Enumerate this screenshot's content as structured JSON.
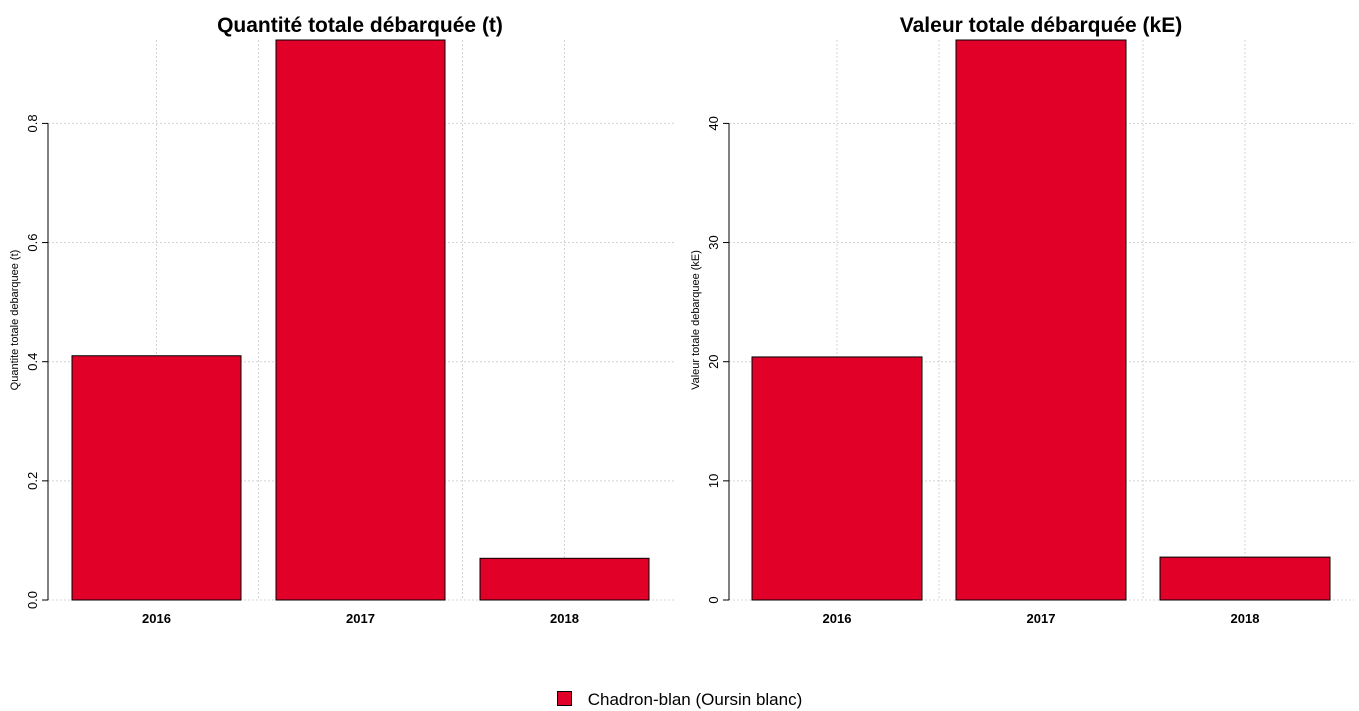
{
  "legend": {
    "label": "Chadron-blan (Oursin blanc)",
    "color": "#e00028"
  },
  "chart_data": [
    {
      "type": "bar",
      "title": "Quantité totale débarquée (t)",
      "xlabel": "",
      "ylabel": "Quantite totale debarquee (t)",
      "categories": [
        "2016",
        "2017",
        "2018"
      ],
      "series": [
        {
          "name": "Chadron-blan (Oursin blanc)",
          "values": [
            0.41,
            0.94,
            0.07
          ]
        }
      ],
      "ylim": [
        0,
        0.94
      ],
      "yticks": [
        0.0,
        0.2,
        0.4,
        0.6,
        0.8
      ],
      "ytick_labels": [
        "0.0",
        "0.2",
        "0.4",
        "0.6",
        "0.8"
      ],
      "grid": true,
      "bar_color": "#e00028"
    },
    {
      "type": "bar",
      "title": "Valeur totale débarquée (kE)",
      "xlabel": "",
      "ylabel": "Valeur totale debarquee (kE)",
      "categories": [
        "2016",
        "2017",
        "2018"
      ],
      "series": [
        {
          "name": "Chadron-blan (Oursin blanc)",
          "values": [
            20.4,
            47.0,
            3.6
          ]
        }
      ],
      "ylim": [
        0,
        47
      ],
      "yticks": [
        0,
        10,
        20,
        30,
        40
      ],
      "ytick_labels": [
        "0",
        "10",
        "20",
        "30",
        "40"
      ],
      "grid": true,
      "bar_color": "#e00028"
    }
  ]
}
